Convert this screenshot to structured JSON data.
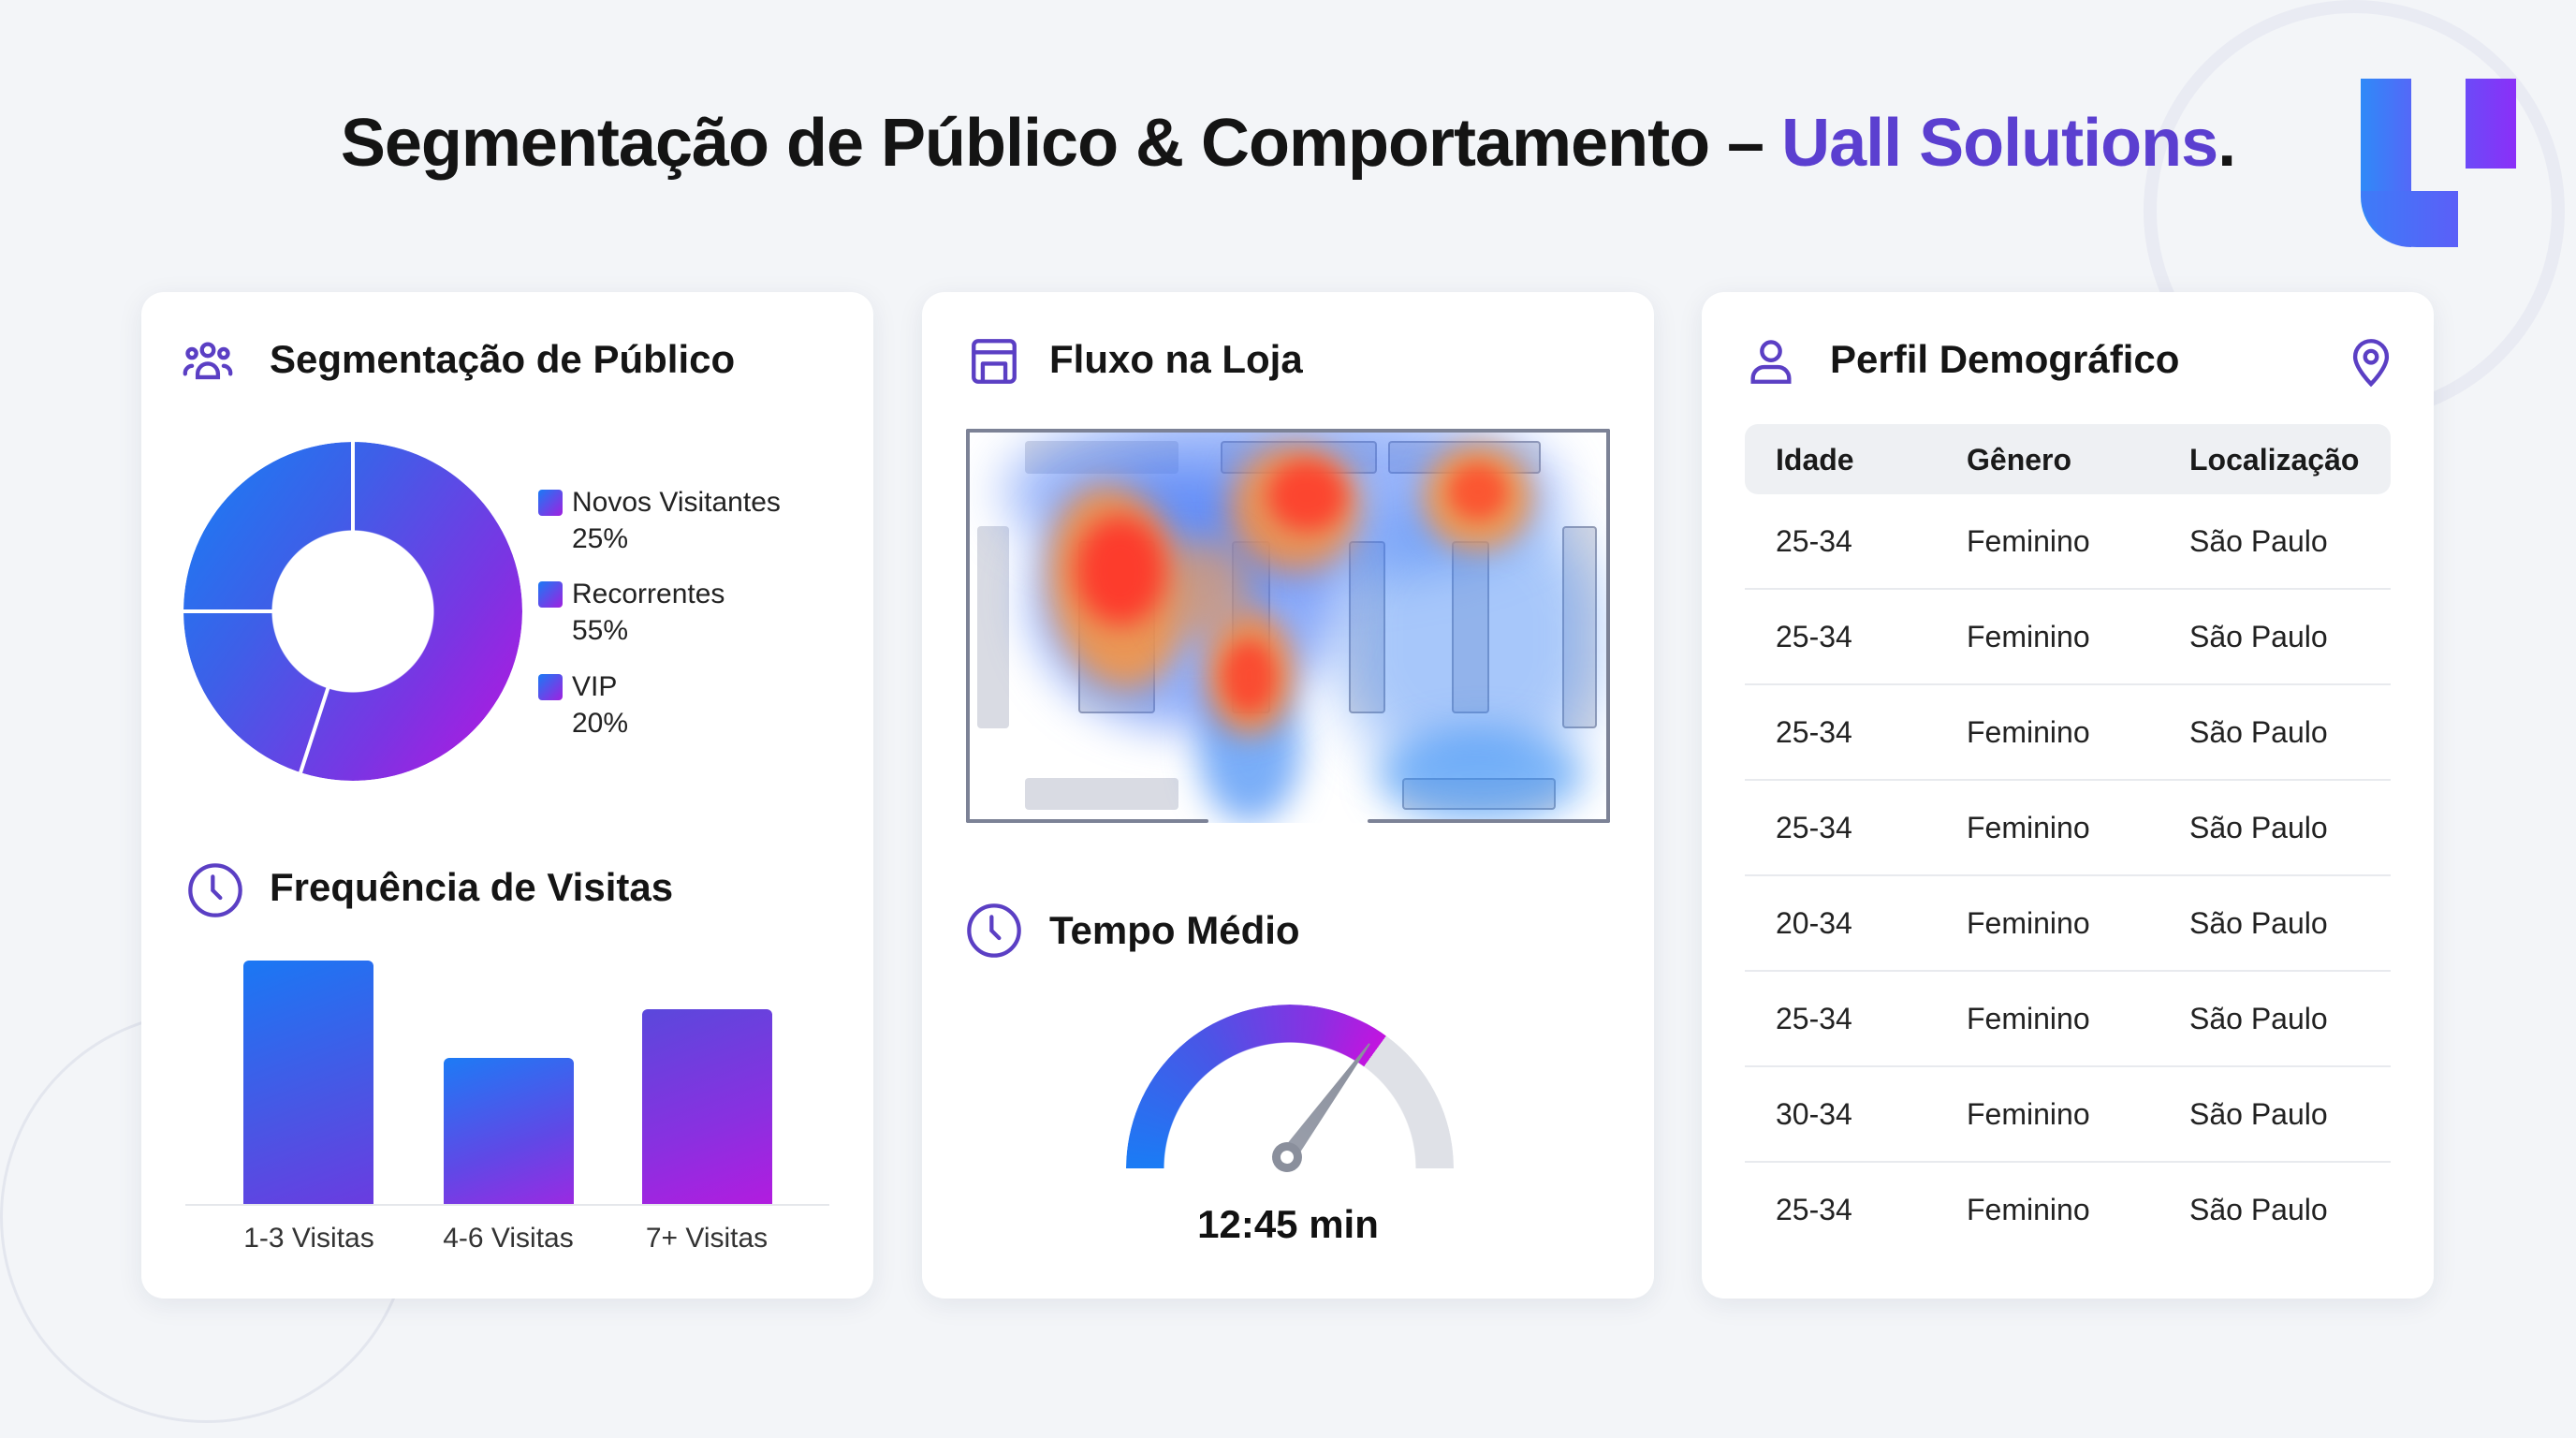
{
  "header": {
    "title_main": "Segmentação de Público & Comportamento – ",
    "title_brand": "Uall Solutions",
    "title_end": ".",
    "logo_text": "Uall"
  },
  "colors": {
    "accent": "#5b3fd0",
    "blue": "#1580f5",
    "magenta": "#bd12df",
    "heat_red": "#ff3b2f",
    "heat_blue": "#3f7cf5"
  },
  "segmentacao": {
    "title": "Segmentação de Público",
    "icon": "users-icon",
    "legend": [
      {
        "label": "Novos Visitantes",
        "value": "25%"
      },
      {
        "label": "Recorrentes",
        "value": "55%"
      },
      {
        "label": "VIP",
        "value": "20%"
      }
    ]
  },
  "frequencia": {
    "title": "Frequência de Visitas",
    "icon": "clock-icon"
  },
  "fluxo": {
    "title": "Fluxo na Loja",
    "icon": "store-icon"
  },
  "tempo": {
    "title": "Tempo Médio",
    "icon": "clock-icon",
    "value": "12:45 min",
    "gauge_fraction": 0.7
  },
  "perfil": {
    "title": "Perfil Demográfico",
    "icon": "user-icon",
    "location_icon": "map-pin-icon",
    "columns": [
      "Idade",
      "Gênero",
      "Localização"
    ],
    "rows": [
      [
        "25-34",
        "Feminino",
        "São Paulo"
      ],
      [
        "25-34",
        "Feminino",
        "São Paulo"
      ],
      [
        "25-34",
        "Feminino",
        "São Paulo"
      ],
      [
        "25-34",
        "Feminino",
        "São Paulo"
      ],
      [
        "20-34",
        "Feminino",
        "São Paulo"
      ],
      [
        "25-34",
        "Feminino",
        "São Paulo"
      ],
      [
        "30-34",
        "Feminino",
        "São Paulo"
      ],
      [
        "25-34",
        "Feminino",
        "São Paulo"
      ]
    ]
  },
  "chart_data": [
    {
      "type": "pie",
      "title": "Segmentação de Público",
      "categories": [
        "Novos Visitantes",
        "Recorrentes",
        "VIP"
      ],
      "values": [
        25,
        55,
        20
      ],
      "donut": true,
      "legend": "right"
    },
    {
      "type": "bar",
      "title": "Frequência de Visitas",
      "categories": [
        "1-3 Visitas",
        "4-6 Visitas",
        "7+ Visitas"
      ],
      "values": [
        50,
        30,
        40
      ],
      "xlabel": "",
      "ylabel": "",
      "ylim": [
        0,
        50
      ],
      "grid": false
    }
  ]
}
